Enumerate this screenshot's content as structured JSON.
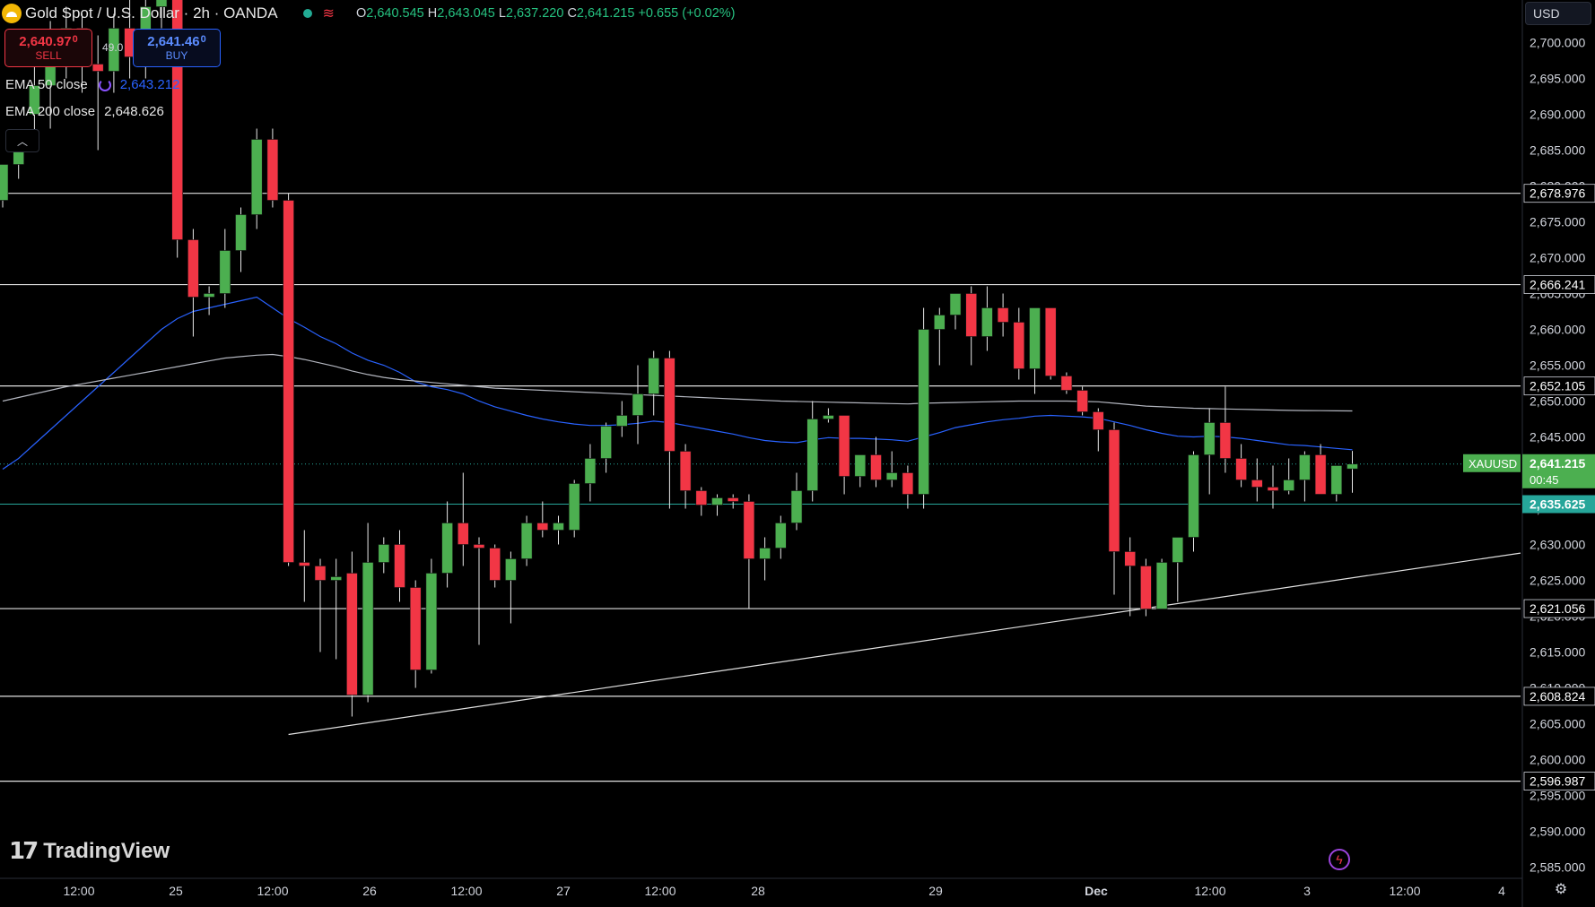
{
  "header": {
    "symbol_title": "Gold Spot / U.S. Dollar · 2h · OANDA",
    "ohlc": {
      "o_label": "O",
      "o": "2,640.545",
      "h_label": "H",
      "h": "2,643.045",
      "l_label": "L",
      "l": "2,637.220",
      "c_label": "C",
      "c": "2,641.215",
      "change": "+0.655 (+0.02%)"
    }
  },
  "trade": {
    "sell_price": "2,640.97",
    "sell_price_small": "0",
    "sell_label": "SELL",
    "spread": "49.0",
    "buy_price": "2,641.46",
    "buy_price_small": "0",
    "buy_label": "BUY"
  },
  "indicators": {
    "ema50_label": "EMA 50 close",
    "ema50_value": "2,643.212",
    "ema200_label": "EMA 200 close",
    "ema200_value": "2,648.626"
  },
  "collapse_icon": "chevron-up-icon",
  "currency": "USD",
  "branding": "TradingView",
  "colors": {
    "up": "#4caf50",
    "down": "#f23645",
    "ema50": "#2962ff",
    "ema200": "#b2b5be",
    "last_price": "#26a69a",
    "background": "#000000"
  },
  "chart_data": {
    "type": "candlestick",
    "title": "Gold Spot / U.S. Dollar · 2h · OANDA",
    "ylim": [
      2583.5,
      2709
    ],
    "y_ticks": [
      "2,585.000",
      "2,590.000",
      "2,595.000",
      "2,600.000",
      "2,605.000",
      "2,610.000",
      "2,615.000",
      "2,620.000",
      "2,625.000",
      "2,630.000",
      "2,635.000",
      "2,640.000",
      "2,645.000",
      "2,650.000",
      "2,655.000",
      "2,660.000",
      "2,665.000",
      "2,670.000",
      "2,675.000",
      "2,680.000",
      "2,685.000",
      "2,690.000",
      "2,695.000",
      "2,700.000"
    ],
    "x_ticks": [
      "12:00",
      "25",
      "12:00",
      "26",
      "12:00",
      "27",
      "12:00",
      "28",
      "29",
      "Dec",
      "12:00",
      "3",
      "12:00",
      "4"
    ],
    "candles": [
      {
        "o": 2678,
        "h": 2683,
        "l": 2677,
        "c": 2683
      },
      {
        "o": 2683,
        "h": 2687,
        "l": 2681,
        "c": 2686
      },
      {
        "o": 2690,
        "h": 2697,
        "l": 2687,
        "c": 2694
      },
      {
        "o": 2694,
        "h": 2703,
        "l": 2688,
        "c": 2700
      },
      {
        "o": 2700,
        "h": 2705,
        "l": 2695,
        "c": 2702
      },
      {
        "o": 2702,
        "h": 2704,
        "l": 2693,
        "c": 2697
      },
      {
        "o": 2697,
        "h": 2701,
        "l": 2685,
        "c": 2696
      },
      {
        "o": 2696,
        "h": 2704,
        "l": 2693,
        "c": 2702
      },
      {
        "o": 2702,
        "h": 2706,
        "l": 2695,
        "c": 2698
      },
      {
        "o": 2698,
        "h": 2707,
        "l": 2695,
        "c": 2705
      },
      {
        "o": 2705,
        "h": 2708,
        "l": 2702,
        "c": 2706
      },
      {
        "o": 2706,
        "h": 2708,
        "l": 2670,
        "c": 2672.5
      },
      {
        "o": 2672.5,
        "h": 2674,
        "l": 2659,
        "c": 2664.5
      },
      {
        "o": 2664.5,
        "h": 2666,
        "l": 2662,
        "c": 2665
      },
      {
        "o": 2665,
        "h": 2674,
        "l": 2663,
        "c": 2671
      },
      {
        "o": 2671,
        "h": 2677,
        "l": 2668,
        "c": 2676
      },
      {
        "o": 2676,
        "h": 2688,
        "l": 2674,
        "c": 2686.5
      },
      {
        "o": 2686.5,
        "h": 2688,
        "l": 2677,
        "c": 2678
      },
      {
        "o": 2678,
        "h": 2679,
        "l": 2627,
        "c": 2627.5
      },
      {
        "o": 2627.5,
        "h": 2632,
        "l": 2622,
        "c": 2627
      },
      {
        "o": 2627,
        "h": 2628,
        "l": 2615,
        "c": 2625
      },
      {
        "o": 2625,
        "h": 2628,
        "l": 2614,
        "c": 2625.5
      },
      {
        "o": 2626,
        "h": 2629,
        "l": 2606,
        "c": 2609
      },
      {
        "o": 2609,
        "h": 2633,
        "l": 2608,
        "c": 2627.5
      },
      {
        "o": 2627.5,
        "h": 2631,
        "l": 2626,
        "c": 2630
      },
      {
        "o": 2630,
        "h": 2632,
        "l": 2622,
        "c": 2624
      },
      {
        "o": 2624,
        "h": 2625,
        "l": 2610,
        "c": 2612.5
      },
      {
        "o": 2612.5,
        "h": 2628,
        "l": 2612,
        "c": 2626
      },
      {
        "o": 2626,
        "h": 2636,
        "l": 2624,
        "c": 2633
      },
      {
        "o": 2633,
        "h": 2640,
        "l": 2627,
        "c": 2630
      },
      {
        "o": 2630,
        "h": 2631,
        "l": 2616,
        "c": 2629.5
      },
      {
        "o": 2629.5,
        "h": 2630,
        "l": 2624,
        "c": 2625
      },
      {
        "o": 2625,
        "h": 2629,
        "l": 2619,
        "c": 2628
      },
      {
        "o": 2628,
        "h": 2634,
        "l": 2627,
        "c": 2633
      },
      {
        "o": 2633,
        "h": 2636,
        "l": 2631,
        "c": 2632
      },
      {
        "o": 2632,
        "h": 2634,
        "l": 2630,
        "c": 2633
      },
      {
        "o": 2632,
        "h": 2639,
        "l": 2631,
        "c": 2638.5
      },
      {
        "o": 2638.5,
        "h": 2644,
        "l": 2636,
        "c": 2642
      },
      {
        "o": 2642,
        "h": 2647,
        "l": 2640,
        "c": 2646.5
      },
      {
        "o": 2646.5,
        "h": 2650,
        "l": 2645,
        "c": 2648
      },
      {
        "o": 2648,
        "h": 2655,
        "l": 2644,
        "c": 2651
      },
      {
        "o": 2651,
        "h": 2657,
        "l": 2648,
        "c": 2656
      },
      {
        "o": 2656,
        "h": 2657,
        "l": 2635,
        "c": 2643
      },
      {
        "o": 2643,
        "h": 2644,
        "l": 2635,
        "c": 2637.5
      },
      {
        "o": 2637.5,
        "h": 2638,
        "l": 2634,
        "c": 2635.5
      },
      {
        "o": 2635.5,
        "h": 2637,
        "l": 2634,
        "c": 2636.5
      },
      {
        "o": 2636.5,
        "h": 2637,
        "l": 2635,
        "c": 2636
      },
      {
        "o": 2636,
        "h": 2637,
        "l": 2621,
        "c": 2628
      },
      {
        "o": 2628,
        "h": 2631,
        "l": 2625,
        "c": 2629.5
      },
      {
        "o": 2629.5,
        "h": 2634,
        "l": 2628,
        "c": 2633
      },
      {
        "o": 2633,
        "h": 2640,
        "l": 2632,
        "c": 2637.5
      },
      {
        "o": 2637.5,
        "h": 2650,
        "l": 2636,
        "c": 2647.5
      },
      {
        "o": 2647.5,
        "h": 2649,
        "l": 2647,
        "c": 2648
      },
      {
        "o": 2648,
        "h": 2648,
        "l": 2637,
        "c": 2639.5
      },
      {
        "o": 2639.5,
        "h": 2642,
        "l": 2638,
        "c": 2642.5
      },
      {
        "o": 2642.5,
        "h": 2645,
        "l": 2638,
        "c": 2639
      },
      {
        "o": 2639,
        "h": 2643,
        "l": 2638,
        "c": 2640
      },
      {
        "o": 2640,
        "h": 2641,
        "l": 2635,
        "c": 2637
      },
      {
        "o": 2637,
        "h": 2663,
        "l": 2635,
        "c": 2660
      },
      {
        "o": 2660,
        "h": 2663,
        "l": 2655,
        "c": 2662
      },
      {
        "o": 2662,
        "h": 2665,
        "l": 2660,
        "c": 2665
      },
      {
        "o": 2665,
        "h": 2666,
        "l": 2655,
        "c": 2659
      },
      {
        "o": 2659,
        "h": 2666,
        "l": 2657,
        "c": 2663
      },
      {
        "o": 2663,
        "h": 2665,
        "l": 2659,
        "c": 2661
      },
      {
        "o": 2661,
        "h": 2663,
        "l": 2653,
        "c": 2654.5
      },
      {
        "o": 2654.5,
        "h": 2663,
        "l": 2651,
        "c": 2663
      },
      {
        "o": 2663,
        "h": 2663,
        "l": 2653,
        "c": 2653.5
      },
      {
        "o": 2653.5,
        "h": 2654,
        "l": 2651,
        "c": 2651.5
      },
      {
        "o": 2651.5,
        "h": 2652,
        "l": 2648,
        "c": 2648.5
      },
      {
        "o": 2648.5,
        "h": 2649,
        "l": 2643,
        "c": 2646
      },
      {
        "o": 2646,
        "h": 2647,
        "l": 2623,
        "c": 2629
      },
      {
        "o": 2629,
        "h": 2631,
        "l": 2620,
        "c": 2627
      },
      {
        "o": 2627,
        "h": 2628,
        "l": 2620,
        "c": 2621
      },
      {
        "o": 2621,
        "h": 2628,
        "l": 2621,
        "c": 2627.5
      },
      {
        "o": 2627.5,
        "h": 2631,
        "l": 2622,
        "c": 2631
      },
      {
        "o": 2631,
        "h": 2643,
        "l": 2629,
        "c": 2642.5
      },
      {
        "o": 2642.5,
        "h": 2649,
        "l": 2637,
        "c": 2647
      },
      {
        "o": 2647,
        "h": 2652,
        "l": 2640,
        "c": 2642
      },
      {
        "o": 2642,
        "h": 2644,
        "l": 2638,
        "c": 2639
      },
      {
        "o": 2639,
        "h": 2642,
        "l": 2636,
        "c": 2638
      },
      {
        "o": 2638,
        "h": 2641,
        "l": 2635,
        "c": 2637.5
      },
      {
        "o": 2637.5,
        "h": 2642,
        "l": 2637,
        "c": 2639
      },
      {
        "o": 2639,
        "h": 2643,
        "l": 2636,
        "c": 2642.5
      },
      {
        "o": 2642.5,
        "h": 2644,
        "l": 2637,
        "c": 2637
      },
      {
        "o": 2637,
        "h": 2641,
        "l": 2636,
        "c": 2641
      },
      {
        "o": 2640.545,
        "h": 2643.045,
        "l": 2637.22,
        "c": 2641.215
      }
    ],
    "series": [
      {
        "name": "EMA 50 close",
        "values": [
          2640.5,
          2642,
          2644,
          2646,
          2648,
          2650,
          2652,
          2654,
          2656,
          2658,
          2660,
          2661.5,
          2662.5,
          2663,
          2663.5,
          2664,
          2664.5,
          2663,
          2661.5,
          2660.3,
          2659,
          2658,
          2656.7,
          2655.7,
          2655,
          2654,
          2652.7,
          2652,
          2651.6,
          2651,
          2650,
          2649.2,
          2648.6,
          2648,
          2647.5,
          2647.1,
          2646.8,
          2646.6,
          2646.6,
          2646.7,
          2646.9,
          2647.2,
          2647,
          2646.6,
          2646.2,
          2645.8,
          2645.4,
          2644.9,
          2644.5,
          2644.3,
          2644.2,
          2644.6,
          2644.9,
          2644.8,
          2644.8,
          2644.7,
          2644.6,
          2644.4,
          2645,
          2645.6,
          2646.3,
          2646.7,
          2647.1,
          2647.4,
          2647.6,
          2647.9,
          2648,
          2647.9,
          2647.8,
          2647.6,
          2647.1,
          2646.6,
          2646,
          2645.5,
          2645.1,
          2645,
          2645.1,
          2645,
          2644.8,
          2644.5,
          2644.2,
          2643.9,
          2643.8,
          2643.6,
          2643.4,
          2643.212
        ]
      },
      {
        "name": "EMA 200 close",
        "values": [
          2650,
          2650.5,
          2651,
          2651.5,
          2652,
          2652.4,
          2652.8,
          2653.2,
          2653.6,
          2654,
          2654.4,
          2654.8,
          2655.2,
          2655.6,
          2656,
          2656.2,
          2656.4,
          2656.5,
          2656.2,
          2655.8,
          2655.3,
          2654.8,
          2654.2,
          2653.7,
          2653.3,
          2653,
          2652.8,
          2652.6,
          2652.4,
          2652.2,
          2652,
          2651.8,
          2651.7,
          2651.6,
          2651.5,
          2651.4,
          2651.3,
          2651.2,
          2651.1,
          2651,
          2650.9,
          2650.8,
          2650.7,
          2650.6,
          2650.5,
          2650.4,
          2650.3,
          2650.2,
          2650.1,
          2650,
          2649.95,
          2649.9,
          2649.85,
          2649.8,
          2649.75,
          2649.7,
          2649.65,
          2649.6,
          2649.7,
          2649.75,
          2649.8,
          2649.85,
          2649.9,
          2649.95,
          2650,
          2650,
          2650,
          2650,
          2649.95,
          2649.9,
          2649.7,
          2649.5,
          2649.3,
          2649.2,
          2649.1,
          2649,
          2648.95,
          2648.9,
          2648.85,
          2648.8,
          2648.75,
          2648.7,
          2648.68,
          2648.66,
          2648.64,
          2648.626
        ]
      }
    ],
    "horizontal_lines": [
      {
        "price": 2678.976,
        "label": "2,678.976"
      },
      {
        "price": 2666.241,
        "label": "2,666.241"
      },
      {
        "price": 2652.105,
        "label": "2,652.105"
      },
      {
        "price": 2621.056,
        "label": "2,621.056"
      },
      {
        "price": 2608.824,
        "label": "2,608.824"
      },
      {
        "price": 2596.987,
        "label": "2,596.987"
      }
    ],
    "trendline": {
      "from": {
        "candle": 18,
        "price": 2603.5
      },
      "to": {
        "candle": "axis",
        "price": 2628.8
      }
    },
    "last_price": {
      "symbol": "XAUUSD",
      "price": 2641.215,
      "label": "2,641.215",
      "countdown": "00:45"
    },
    "teal_line": {
      "price": 2635.625,
      "label": "2,635.625"
    }
  }
}
